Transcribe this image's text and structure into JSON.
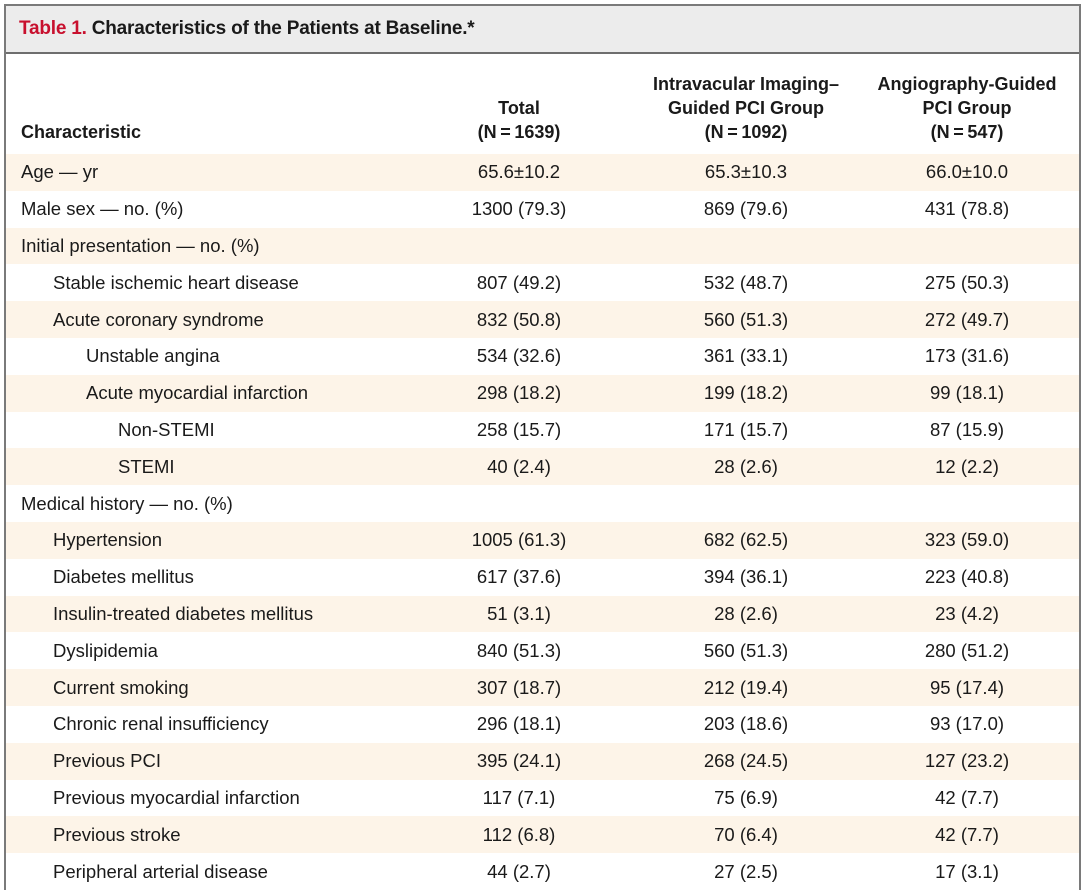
{
  "table": {
    "label": "Table 1.",
    "title": "Characteristics of the Patients at Baseline.*",
    "columns": {
      "characteristic": "Characteristic",
      "total": [
        "Total",
        "(N = 1639)"
      ],
      "imaging": [
        "Intravacular Imaging–",
        "Guided PCI Group",
        "(N = 1092)"
      ],
      "angiography": [
        "Angiography-Guided",
        "PCI Group",
        "(N = 547)"
      ]
    },
    "rows": [
      {
        "label": "Age — yr",
        "indent": 0,
        "total": "65.6±10.2",
        "imaging": "65.3±10.3",
        "angiography": "66.0±10.0"
      },
      {
        "label": "Male sex — no. (%)",
        "indent": 0,
        "total": "1300 (79.3)",
        "imaging": "869 (79.6)",
        "angiography": "431 (78.8)"
      },
      {
        "label": "Initial presentation — no. (%)",
        "indent": 0,
        "total": "",
        "imaging": "",
        "angiography": ""
      },
      {
        "label": "Stable ischemic heart disease",
        "indent": 1,
        "total": "807 (49.2)",
        "imaging": "532 (48.7)",
        "angiography": "275 (50.3)"
      },
      {
        "label": "Acute coronary syndrome",
        "indent": 1,
        "total": "832 (50.8)",
        "imaging": "560 (51.3)",
        "angiography": "272 (49.7)"
      },
      {
        "label": "Unstable angina",
        "indent": 2,
        "total": "534 (32.6)",
        "imaging": "361 (33.1)",
        "angiography": "173 (31.6)"
      },
      {
        "label": "Acute myocardial infarction",
        "indent": 2,
        "total": "298 (18.2)",
        "imaging": "199 (18.2)",
        "angiography": "99 (18.1)"
      },
      {
        "label": "Non-STEMI",
        "indent": 3,
        "total": "258 (15.7)",
        "imaging": "171 (15.7)",
        "angiography": "87 (15.9)"
      },
      {
        "label": "STEMI",
        "indent": 3,
        "total": "40 (2.4)",
        "imaging": "28 (2.6)",
        "angiography": "12 (2.2)"
      },
      {
        "label": "Medical history — no. (%)",
        "indent": 0,
        "total": "",
        "imaging": "",
        "angiography": ""
      },
      {
        "label": "Hypertension",
        "indent": 1,
        "total": "1005 (61.3)",
        "imaging": "682 (62.5)",
        "angiography": "323 (59.0)"
      },
      {
        "label": "Diabetes mellitus",
        "indent": 1,
        "total": "617 (37.6)",
        "imaging": "394 (36.1)",
        "angiography": "223 (40.8)"
      },
      {
        "label": "Insulin-treated diabetes mellitus",
        "indent": 1,
        "total": "51 (3.1)",
        "imaging": "28 (2.6)",
        "angiography": "23 (4.2)"
      },
      {
        "label": "Dyslipidemia",
        "indent": 1,
        "total": "840 (51.3)",
        "imaging": "560 (51.3)",
        "angiography": "280 (51.2)"
      },
      {
        "label": "Current smoking",
        "indent": 1,
        "total": "307 (18.7)",
        "imaging": "212 (19.4)",
        "angiography": "95 (17.4)"
      },
      {
        "label": "Chronic renal insufficiency",
        "indent": 1,
        "total": "296 (18.1)",
        "imaging": "203 (18.6)",
        "angiography": "93 (17.0)"
      },
      {
        "label": "Previous PCI",
        "indent": 1,
        "total": "395 (24.1)",
        "imaging": "268 (24.5)",
        "angiography": "127 (23.2)"
      },
      {
        "label": "Previous myocardial infarction",
        "indent": 1,
        "total": "117 (7.1)",
        "imaging": "75 (6.9)",
        "angiography": "42 (7.7)"
      },
      {
        "label": "Previous stroke",
        "indent": 1,
        "total": "112 (6.8)",
        "imaging": "70 (6.4)",
        "angiography": "42 (7.7)"
      },
      {
        "label": "Peripheral arterial disease",
        "indent": 1,
        "total": "44 (2.7)",
        "imaging": "27 (2.5)",
        "angiography": "17 (3.1)"
      }
    ]
  },
  "colors": {
    "title_label": "#c8102e",
    "title_bar_bg": "#ececec",
    "row_shade": "#fdf4e8"
  }
}
